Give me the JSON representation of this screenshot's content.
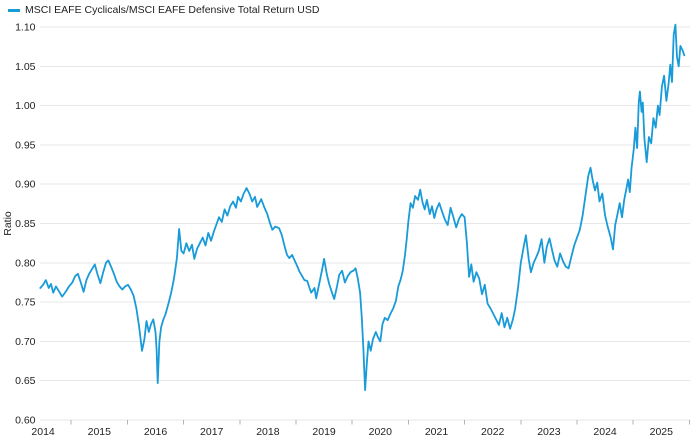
{
  "legend": {
    "label": "MSCI EAFE Cyclicals/MSCI EAFE Defensive Total Return USD",
    "color": "#189BD8"
  },
  "y_axis": {
    "title": "Ratio",
    "tick_labels": [
      "1.10",
      "1.05",
      "1.00",
      "0.95",
      "0.90",
      "0.85",
      "0.80",
      "0.75",
      "0.70",
      "0.65",
      "0.60"
    ],
    "tick_values": [
      1.1,
      1.05,
      1.0,
      0.95,
      0.9,
      0.85,
      0.8,
      0.75,
      0.7,
      0.65,
      0.6
    ]
  },
  "x_axis": {
    "tick_labels": [
      "2014",
      "2015",
      "2016",
      "2017",
      "2018",
      "2019",
      "2020",
      "2021",
      "2022",
      "2023",
      "2024",
      "2025"
    ]
  },
  "chart_data": {
    "type": "line",
    "title": "",
    "xlabel": "",
    "ylabel": "Ratio",
    "legend_position": "top-left",
    "grid": true,
    "ylim": [
      0.6,
      1.1
    ],
    "x_range": [
      2014.45,
      2025.91
    ],
    "series": [
      {
        "name": "MSCI EAFE Cyclicals/MSCI EAFE Defensive Total Return USD",
        "color": "#189BD8",
        "points": [
          [
            2014.45,
            0.768
          ],
          [
            2014.5,
            0.772
          ],
          [
            2014.55,
            0.778
          ],
          [
            2014.6,
            0.768
          ],
          [
            2014.64,
            0.773
          ],
          [
            2014.68,
            0.762
          ],
          [
            2014.73,
            0.77
          ],
          [
            2014.78,
            0.764
          ],
          [
            2014.84,
            0.757
          ],
          [
            2014.9,
            0.763
          ],
          [
            2014.96,
            0.77
          ],
          [
            2015.02,
            0.775
          ],
          [
            2015.07,
            0.783
          ],
          [
            2015.12,
            0.786
          ],
          [
            2015.17,
            0.775
          ],
          [
            2015.22,
            0.763
          ],
          [
            2015.27,
            0.778
          ],
          [
            2015.32,
            0.786
          ],
          [
            2015.37,
            0.792
          ],
          [
            2015.42,
            0.798
          ],
          [
            2015.47,
            0.785
          ],
          [
            2015.52,
            0.774
          ],
          [
            2015.57,
            0.788
          ],
          [
            2015.62,
            0.8
          ],
          [
            2015.66,
            0.803
          ],
          [
            2015.71,
            0.795
          ],
          [
            2015.76,
            0.786
          ],
          [
            2015.81,
            0.776
          ],
          [
            2015.86,
            0.77
          ],
          [
            2015.91,
            0.766
          ],
          [
            2015.96,
            0.77
          ],
          [
            2016.01,
            0.772
          ],
          [
            2016.06,
            0.766
          ],
          [
            2016.11,
            0.758
          ],
          [
            2016.16,
            0.742
          ],
          [
            2016.21,
            0.718
          ],
          [
            2016.26,
            0.688
          ],
          [
            2016.3,
            0.702
          ],
          [
            2016.34,
            0.726
          ],
          [
            2016.38,
            0.712
          ],
          [
            2016.42,
            0.722
          ],
          [
            2016.46,
            0.728
          ],
          [
            2016.5,
            0.712
          ],
          [
            2016.52,
            0.69
          ],
          [
            2016.54,
            0.647
          ],
          [
            2016.57,
            0.7
          ],
          [
            2016.6,
            0.718
          ],
          [
            2016.64,
            0.728
          ],
          [
            2016.68,
            0.735
          ],
          [
            2016.73,
            0.748
          ],
          [
            2016.78,
            0.762
          ],
          [
            2016.83,
            0.78
          ],
          [
            2016.88,
            0.806
          ],
          [
            2016.92,
            0.843
          ],
          [
            2016.96,
            0.815
          ],
          [
            2017.0,
            0.812
          ],
          [
            2017.05,
            0.825
          ],
          [
            2017.1,
            0.815
          ],
          [
            2017.15,
            0.823
          ],
          [
            2017.19,
            0.805
          ],
          [
            2017.24,
            0.818
          ],
          [
            2017.29,
            0.825
          ],
          [
            2017.34,
            0.832
          ],
          [
            2017.39,
            0.822
          ],
          [
            2017.44,
            0.838
          ],
          [
            2017.49,
            0.828
          ],
          [
            2017.54,
            0.84
          ],
          [
            2017.58,
            0.848
          ],
          [
            2017.63,
            0.858
          ],
          [
            2017.68,
            0.852
          ],
          [
            2017.73,
            0.868
          ],
          [
            2017.78,
            0.86
          ],
          [
            2017.83,
            0.872
          ],
          [
            2017.88,
            0.878
          ],
          [
            2017.93,
            0.87
          ],
          [
            2017.97,
            0.884
          ],
          [
            2018.02,
            0.878
          ],
          [
            2018.07,
            0.888
          ],
          [
            2018.12,
            0.895
          ],
          [
            2018.17,
            0.888
          ],
          [
            2018.22,
            0.878
          ],
          [
            2018.27,
            0.884
          ],
          [
            2018.31,
            0.871
          ],
          [
            2018.38,
            0.881
          ],
          [
            2018.44,
            0.87
          ],
          [
            2018.49,
            0.862
          ],
          [
            2018.54,
            0.85
          ],
          [
            2018.58,
            0.842
          ],
          [
            2018.63,
            0.846
          ],
          [
            2018.7,
            0.844
          ],
          [
            2018.75,
            0.835
          ],
          [
            2018.79,
            0.823
          ],
          [
            2018.84,
            0.81
          ],
          [
            2018.88,
            0.806
          ],
          [
            2018.93,
            0.81
          ],
          [
            2018.97,
            0.804
          ],
          [
            2019.02,
            0.796
          ],
          [
            2019.06,
            0.789
          ],
          [
            2019.11,
            0.783
          ],
          [
            2019.15,
            0.778
          ],
          [
            2019.2,
            0.777
          ],
          [
            2019.24,
            0.768
          ],
          [
            2019.27,
            0.762
          ],
          [
            2019.33,
            0.768
          ],
          [
            2019.36,
            0.755
          ],
          [
            2019.41,
            0.772
          ],
          [
            2019.46,
            0.79
          ],
          [
            2019.5,
            0.805
          ],
          [
            2019.55,
            0.785
          ],
          [
            2019.59,
            0.773
          ],
          [
            2019.64,
            0.762
          ],
          [
            2019.68,
            0.754
          ],
          [
            2019.73,
            0.77
          ],
          [
            2019.77,
            0.785
          ],
          [
            2019.82,
            0.79
          ],
          [
            2019.87,
            0.775
          ],
          [
            2019.92,
            0.783
          ],
          [
            2019.97,
            0.788
          ],
          [
            2020.02,
            0.79
          ],
          [
            2020.06,
            0.793
          ],
          [
            2020.1,
            0.78
          ],
          [
            2020.14,
            0.762
          ],
          [
            2020.17,
            0.73
          ],
          [
            2020.2,
            0.69
          ],
          [
            2020.23,
            0.638
          ],
          [
            2020.26,
            0.672
          ],
          [
            2020.29,
            0.7
          ],
          [
            2020.33,
            0.688
          ],
          [
            2020.37,
            0.703
          ],
          [
            2020.42,
            0.712
          ],
          [
            2020.46,
            0.705
          ],
          [
            2020.5,
            0.7
          ],
          [
            2020.54,
            0.722
          ],
          [
            2020.58,
            0.73
          ],
          [
            2020.63,
            0.727
          ],
          [
            2020.68,
            0.735
          ],
          [
            2020.73,
            0.742
          ],
          [
            2020.78,
            0.752
          ],
          [
            2020.82,
            0.77
          ],
          [
            2020.86,
            0.778
          ],
          [
            2020.9,
            0.79
          ],
          [
            2020.94,
            0.81
          ],
          [
            2020.97,
            0.83
          ],
          [
            2021.0,
            0.853
          ],
          [
            2021.04,
            0.876
          ],
          [
            2021.08,
            0.87
          ],
          [
            2021.12,
            0.885
          ],
          [
            2021.17,
            0.88
          ],
          [
            2021.21,
            0.893
          ],
          [
            2021.25,
            0.877
          ],
          [
            2021.29,
            0.868
          ],
          [
            2021.33,
            0.88
          ],
          [
            2021.38,
            0.862
          ],
          [
            2021.42,
            0.872
          ],
          [
            2021.46,
            0.857
          ],
          [
            2021.5,
            0.868
          ],
          [
            2021.55,
            0.876
          ],
          [
            2021.6,
            0.865
          ],
          [
            2021.65,
            0.855
          ],
          [
            2021.7,
            0.848
          ],
          [
            2021.75,
            0.87
          ],
          [
            2021.8,
            0.858
          ],
          [
            2021.85,
            0.845
          ],
          [
            2021.9,
            0.856
          ],
          [
            2021.95,
            0.862
          ],
          [
            2022.0,
            0.858
          ],
          [
            2022.04,
            0.827
          ],
          [
            2022.08,
            0.782
          ],
          [
            2022.12,
            0.798
          ],
          [
            2022.16,
            0.776
          ],
          [
            2022.21,
            0.788
          ],
          [
            2022.26,
            0.78
          ],
          [
            2022.31,
            0.76
          ],
          [
            2022.36,
            0.772
          ],
          [
            2022.41,
            0.748
          ],
          [
            2022.46,
            0.742
          ],
          [
            2022.51,
            0.735
          ],
          [
            2022.56,
            0.728
          ],
          [
            2022.61,
            0.721
          ],
          [
            2022.66,
            0.736
          ],
          [
            2022.71,
            0.718
          ],
          [
            2022.76,
            0.73
          ],
          [
            2022.81,
            0.716
          ],
          [
            2022.86,
            0.728
          ],
          [
            2022.9,
            0.742
          ],
          [
            2022.95,
            0.768
          ],
          [
            2023.0,
            0.8
          ],
          [
            2023.05,
            0.82
          ],
          [
            2023.09,
            0.835
          ],
          [
            2023.14,
            0.805
          ],
          [
            2023.18,
            0.788
          ],
          [
            2023.23,
            0.8
          ],
          [
            2023.28,
            0.808
          ],
          [
            2023.32,
            0.815
          ],
          [
            2023.37,
            0.83
          ],
          [
            2023.42,
            0.8
          ],
          [
            2023.46,
            0.82
          ],
          [
            2023.51,
            0.831
          ],
          [
            2023.56,
            0.815
          ],
          [
            2023.6,
            0.803
          ],
          [
            2023.65,
            0.795
          ],
          [
            2023.7,
            0.812
          ],
          [
            2023.75,
            0.802
          ],
          [
            2023.8,
            0.795
          ],
          [
            2023.85,
            0.793
          ],
          [
            2023.9,
            0.808
          ],
          [
            2023.95,
            0.822
          ],
          [
            2024.0,
            0.832
          ],
          [
            2024.05,
            0.842
          ],
          [
            2024.1,
            0.86
          ],
          [
            2024.15,
            0.885
          ],
          [
            2024.2,
            0.91
          ],
          [
            2024.24,
            0.921
          ],
          [
            2024.28,
            0.905
          ],
          [
            2024.32,
            0.892
          ],
          [
            2024.36,
            0.902
          ],
          [
            2024.4,
            0.878
          ],
          [
            2024.45,
            0.888
          ],
          [
            2024.5,
            0.86
          ],
          [
            2024.55,
            0.845
          ],
          [
            2024.6,
            0.832
          ],
          [
            2024.64,
            0.817
          ],
          [
            2024.68,
            0.848
          ],
          [
            2024.72,
            0.862
          ],
          [
            2024.76,
            0.876
          ],
          [
            2024.8,
            0.858
          ],
          [
            2024.84,
            0.88
          ],
          [
            2024.88,
            0.895
          ],
          [
            2024.91,
            0.906
          ],
          [
            2024.94,
            0.89
          ],
          [
            2024.97,
            0.92
          ],
          [
            2025.01,
            0.945
          ],
          [
            2025.04,
            0.972
          ],
          [
            2025.07,
            0.946
          ],
          [
            2025.1,
            1.005
          ],
          [
            2025.12,
            1.018
          ],
          [
            2025.15,
            0.992
          ],
          [
            2025.17,
            1.004
          ],
          [
            2025.2,
            0.958
          ],
          [
            2025.24,
            0.928
          ],
          [
            2025.28,
            0.96
          ],
          [
            2025.32,
            0.952
          ],
          [
            2025.36,
            0.984
          ],
          [
            2025.4,
            0.972
          ],
          [
            2025.44,
            1.0
          ],
          [
            2025.47,
            0.988
          ],
          [
            2025.51,
            1.024
          ],
          [
            2025.55,
            1.038
          ],
          [
            2025.59,
            1.006
          ],
          [
            2025.63,
            1.028
          ],
          [
            2025.66,
            1.052
          ],
          [
            2025.69,
            1.03
          ],
          [
            2025.72,
            1.09
          ],
          [
            2025.75,
            1.103
          ],
          [
            2025.78,
            1.062
          ],
          [
            2025.81,
            1.05
          ],
          [
            2025.84,
            1.076
          ],
          [
            2025.88,
            1.07
          ],
          [
            2025.91,
            1.064
          ]
        ]
      }
    ]
  }
}
